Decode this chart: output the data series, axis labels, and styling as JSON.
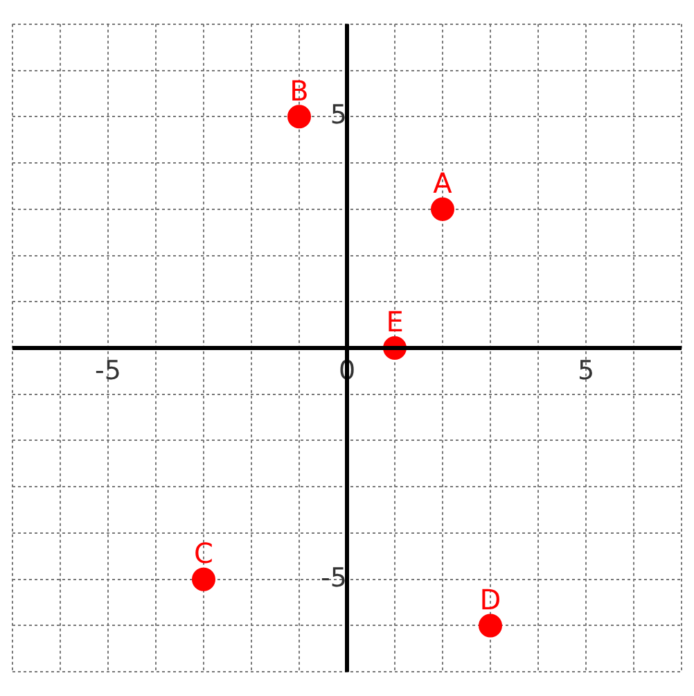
{
  "chart_data": {
    "type": "scatter",
    "xlim": [
      -7,
      7
    ],
    "ylim": [
      -7,
      7
    ],
    "xticks": [
      {
        "value": -7,
        "label": null
      },
      {
        "value": -6,
        "label": null
      },
      -5,
      {
        "value": -4,
        "label": null
      },
      {
        "value": -3,
        "label": null
      },
      {
        "value": -2,
        "label": null
      },
      {
        "value": -1,
        "label": null
      },
      0,
      {
        "value": 1,
        "label": null
      },
      {
        "value": 2,
        "label": null
      },
      {
        "value": 3,
        "label": null
      },
      {
        "value": 4,
        "label": null
      },
      5,
      {
        "value": 6,
        "label": null
      },
      {
        "value": 7,
        "label": null
      }
    ],
    "yticks": [
      {
        "value": -7,
        "label": null
      },
      {
        "value": -6,
        "label": null
      },
      -5,
      {
        "value": -4,
        "label": null
      },
      {
        "value": -3,
        "label": null
      },
      {
        "value": -2,
        "label": null
      },
      {
        "value": -1,
        "label": null
      },
      {
        "value": 0,
        "label": null
      },
      {
        "value": 1,
        "label": null
      },
      {
        "value": 2,
        "label": null
      },
      {
        "value": 3,
        "label": null
      },
      {
        "value": 4,
        "label": null
      },
      5,
      {
        "value": 6,
        "label": null
      },
      {
        "value": 7,
        "label": null
      }
    ],
    "series": [
      {
        "color": "#ff0000",
        "x": [
          2,
          -1,
          -3,
          3,
          1
        ],
        "values": [
          3,
          5,
          -5,
          -6,
          0
        ]
      }
    ],
    "annotations": [
      {
        "text": "A",
        "x": 2,
        "y": 3
      },
      {
        "text": "B",
        "x": -1,
        "y": 5
      },
      {
        "text": "C",
        "x": -3,
        "y": -5
      },
      {
        "text": "D",
        "x": 3,
        "y": -6
      },
      {
        "text": "E",
        "x": 1,
        "y": 0
      }
    ],
    "grid": true,
    "legend": false,
    "marker": "circle"
  }
}
